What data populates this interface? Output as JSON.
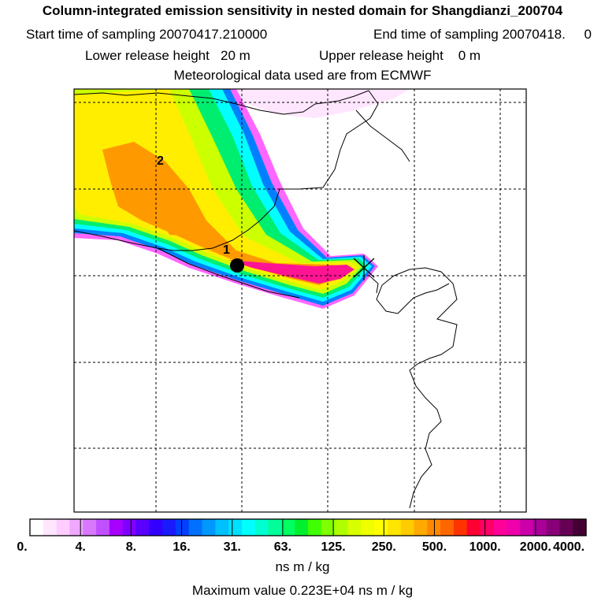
{
  "header": {
    "title": "Column-integrated emission sensitivity in nested domain for Shangdianzi_200704",
    "start_label": "Start time of sampling 20070417.210000",
    "end_label": "End time of sampling 20070418.     0",
    "lower_label": "Lower release height   20 m",
    "upper_label": "Upper release height    0 m",
    "met_label": "Meteorological data used are from ECMWF"
  },
  "map": {
    "labels": [
      "1",
      "2"
    ],
    "colors": {
      "plume_outer": "#ff66ff",
      "plume_blue": "#0080ff",
      "plume_cyan": "#00ffff",
      "plume_green": "#00ee70",
      "plume_yellowgreen": "#ccff00",
      "plume_yellow": "#ffee00",
      "plume_orange": "#ff9900",
      "plume_red": "#ff2040",
      "plume_magenta": "#ff1493"
    }
  },
  "colorbar": {
    "ticks": [
      "0.",
      "4.",
      "8.",
      "16.",
      "31.",
      "63.",
      "125.",
      "250.",
      "500.",
      "1000.",
      "2000.",
      "4000."
    ],
    "unit": "ns m / kg",
    "swatches": [
      "#ffffff",
      "#ffe6ff",
      "#ffccff",
      "#f0a8ff",
      "#d878ff",
      "#c050ff",
      "#a800ff",
      "#8000ff",
      "#5a00ff",
      "#3300ff",
      "#1a1aff",
      "#0040ff",
      "#0070ff",
      "#0098ff",
      "#00c0ff",
      "#00e0ff",
      "#00ffff",
      "#00ffd0",
      "#00ff98",
      "#00ff60",
      "#00f030",
      "#40ff00",
      "#80ff00",
      "#b0ff00",
      "#d8ff00",
      "#f0ff00",
      "#ffff00",
      "#ffe600",
      "#ffcc00",
      "#ffaa00",
      "#ff8800",
      "#ff6600",
      "#ff3300",
      "#ff0033",
      "#ff0066",
      "#ff0099",
      "#ee00aa",
      "#cc00aa",
      "#aa0099",
      "#880077",
      "#660055",
      "#440033"
    ]
  },
  "footer": {
    "max_label": "Maximum value  0.223E+04 ns m / kg"
  }
}
